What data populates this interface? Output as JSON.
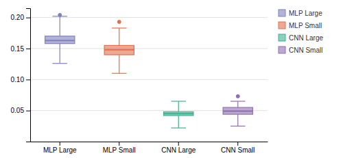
{
  "chart_data": {
    "type": "box",
    "categories": [
      "MLP Large",
      "MLP Small",
      "CNN Large",
      "CNN Small"
    ],
    "values": [
      {
        "whislo": 0.126,
        "q1": 0.158,
        "med": 0.163,
        "q3": 0.17,
        "whishi": 0.202,
        "fliers": [
          0.204
        ]
      },
      {
        "whislo": 0.11,
        "q1": 0.14,
        "med": 0.148,
        "q3": 0.155,
        "whishi": 0.183,
        "fliers": [
          0.193
        ]
      },
      {
        "whislo": 0.022,
        "q1": 0.042,
        "med": 0.045,
        "q3": 0.048,
        "whishi": 0.065,
        "fliers": []
      },
      {
        "whislo": 0.025,
        "q1": 0.044,
        "med": 0.049,
        "q3": 0.055,
        "whishi": 0.065,
        "fliers": [
          0.073
        ]
      }
    ],
    "colors": [
      "#8080c0",
      "#e07050",
      "#40b090",
      "#9070b0"
    ],
    "ylim": [
      0.0,
      0.215
    ],
    "yticks": [
      0.05,
      {
        "value": 0.1,
        "label": "0.10"
      },
      0.15,
      {
        "value": 0.2,
        "label": "0.20"
      }
    ],
    "grid": true,
    "legend": "right"
  }
}
